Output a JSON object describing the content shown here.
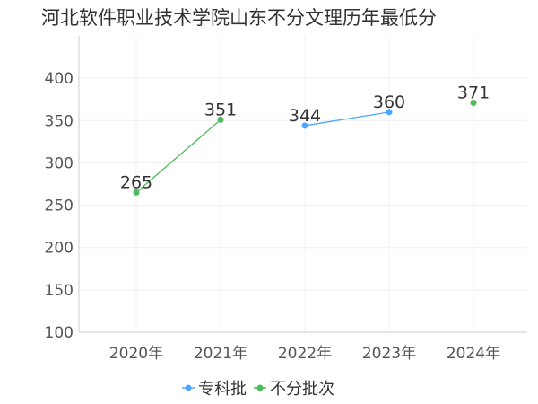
{
  "chart_data": {
    "type": "line",
    "title": "河北软件职业技术学院山东不分文理历年最低分",
    "xlabel": "",
    "ylabel": "",
    "categories": [
      "2020年",
      "2021年",
      "2022年",
      "2023年",
      "2024年"
    ],
    "ylim": [
      100,
      450
    ],
    "yticks": [
      100,
      150,
      200,
      250,
      300,
      350,
      400
    ],
    "grid": true,
    "legend_position": "bottom",
    "series": [
      {
        "name": "专科批",
        "color": "#4da6ff",
        "values": [
          null,
          null,
          344,
          360,
          null
        ]
      },
      {
        "name": "不分批次",
        "color": "#4cbb5a",
        "values": [
          265,
          351,
          null,
          null,
          371
        ]
      }
    ],
    "data_labels": [
      {
        "category": "2020年",
        "value": 265,
        "text": "265"
      },
      {
        "category": "2021年",
        "value": 351,
        "text": "351"
      },
      {
        "category": "2022年",
        "value": 344,
        "text": "344"
      },
      {
        "category": "2023年",
        "value": 360,
        "text": "360"
      },
      {
        "category": "2024年",
        "value": 371,
        "text": "371"
      }
    ]
  }
}
